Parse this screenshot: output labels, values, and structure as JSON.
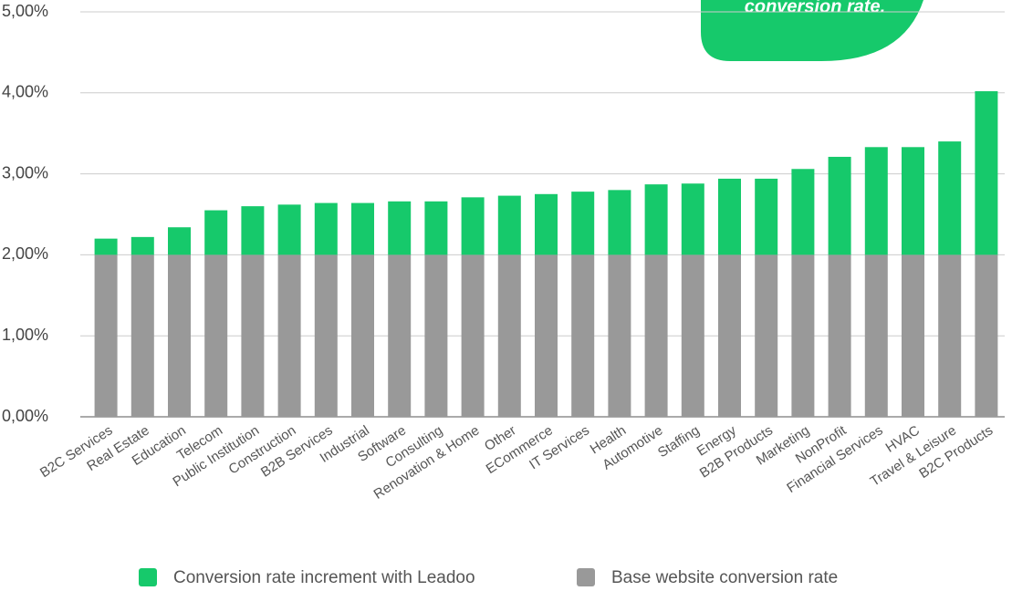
{
  "chart_data": {
    "type": "stacked_bar",
    "annotation": "conversion rate.",
    "categories": [
      "B2C Services",
      "Real Estate",
      "Education",
      "Telecom",
      "Public Institution",
      "Construction",
      "B2B Services",
      "Industrial",
      "Software",
      "Consulting",
      "Renovation & Home",
      "Other",
      "ECommerce",
      "IT Services",
      "Health",
      "Automotive",
      "Staffing",
      "Energy",
      "B2B Products",
      "Marketing",
      "NonProfit",
      "Financial Services",
      "HVAC",
      "Travel & Leisure",
      "B2C Products"
    ],
    "series": [
      {
        "name": "Conversion rate increment with Leadoo",
        "color": "#16c96b",
        "values": [
          0.2,
          0.22,
          0.34,
          0.55,
          0.6,
          0.62,
          0.64,
          0.64,
          0.66,
          0.66,
          0.71,
          0.73,
          0.75,
          0.78,
          0.8,
          0.87,
          0.88,
          0.94,
          0.94,
          1.06,
          1.21,
          1.33,
          1.33,
          1.4,
          2.02
        ]
      },
      {
        "name": "Base website conversion rate",
        "color": "#999999",
        "values": [
          2,
          2,
          2,
          2,
          2,
          2,
          2,
          2,
          2,
          2,
          2,
          2,
          2,
          2,
          2,
          2,
          2,
          2,
          2,
          2,
          2,
          2,
          2,
          2,
          2
        ]
      }
    ],
    "ylim": [
      0,
      5
    ],
    "yticks": [
      {
        "value": 0,
        "label": "0,00%"
      },
      {
        "value": 1,
        "label": "1,00%"
      },
      {
        "value": 2,
        "label": "2,00%"
      },
      {
        "value": 3,
        "label": "3,00%"
      },
      {
        "value": 4,
        "label": "4,00%"
      },
      {
        "value": 5,
        "label": "5,00%"
      }
    ],
    "grid": true
  }
}
